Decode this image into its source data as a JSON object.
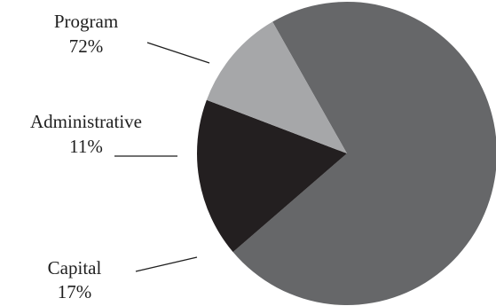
{
  "chart_data": {
    "type": "pie",
    "title": "",
    "slices": [
      {
        "label": "Program",
        "percent_label": "72%",
        "value": 72,
        "color": "#666769"
      },
      {
        "label": "Capital",
        "percent_label": "17%",
        "value": 17,
        "color": "#231f20"
      },
      {
        "label": "Administrative",
        "percent_label": "11%",
        "value": 11,
        "color": "#a6a7a9"
      }
    ],
    "labels_outside_with_leader_lines": true,
    "legend": "none"
  }
}
